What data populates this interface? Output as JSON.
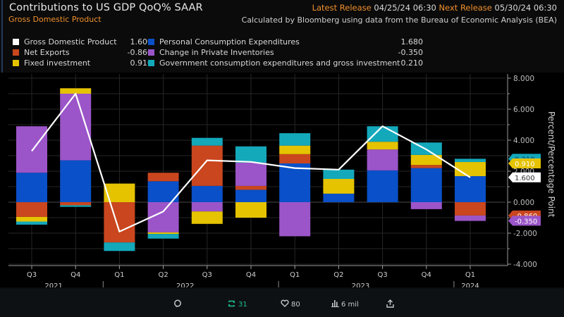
{
  "header": {
    "title": "Contributions to US GDP QoQ% SAAR",
    "subtitle": "Gross Domestic Product",
    "latest_release_label": "Latest Release",
    "latest_release_value": "04/25/24 06:30",
    "next_release_label": "Next Release",
    "next_release_value": "05/30/24 06:30",
    "source": "Calculated by Bloomberg using data from the Bureau of Economic Analysis (BEA)"
  },
  "legend": [
    {
      "name": "Gross Domestic Product",
      "value": "1.600",
      "color": "#ffffff"
    },
    {
      "name": "Net Exports",
      "value": "-0.860",
      "color": "#c9461e"
    },
    {
      "name": "Fixed investment",
      "value": "0.910",
      "color": "#e5c300"
    },
    {
      "name": "Personal Consumption Expenditures",
      "value": "1.680",
      "color": "#0a50c8"
    },
    {
      "name": "Change in Private Inventories",
      "value": "-0.350",
      "color": "#9b55c8"
    },
    {
      "name": "Government consumption expenditures and gross investment",
      "value": "0.210",
      "color": "#14a8bb"
    }
  ],
  "social": {
    "reply_icon": "reply-icon",
    "retweet_icon": "retweet-icon",
    "retweet_count": "31",
    "like_icon": "heart-icon",
    "like_count": "80",
    "views_icon": "views-icon",
    "views_count": "6 mil",
    "share_icon": "share-icon"
  },
  "chart_data": {
    "type": "bar",
    "stacked": true,
    "title": "Contributions to US GDP QoQ% SAAR",
    "xlabel": "",
    "ylabel": "Percent/Percentage Point",
    "ylim": [
      -4,
      8
    ],
    "yticks": [
      "8.000",
      "6.000",
      "4.000",
      "2.000",
      "0.000",
      "-2.000",
      "-4.000"
    ],
    "ytick_values": [
      8,
      6,
      4,
      2,
      0,
      -2,
      -4
    ],
    "grid": true,
    "legend_position": "top",
    "categories": [
      "Q3",
      "Q4",
      "Q1",
      "Q2",
      "Q3",
      "Q4",
      "Q1",
      "Q2",
      "Q3",
      "Q4",
      "Q1"
    ],
    "years": [
      {
        "label": "2021",
        "start": 0,
        "end": 1
      },
      {
        "label": "2022",
        "start": 2,
        "end": 5
      },
      {
        "label": "2023",
        "start": 6,
        "end": 9
      },
      {
        "label": "2024",
        "start": 10,
        "end": 10
      }
    ],
    "series": [
      {
        "name": "Personal Consumption Expenditures",
        "color": "#0a50c8",
        "values": [
          1.9,
          2.7,
          0.0,
          1.35,
          1.05,
          0.8,
          2.5,
          0.55,
          2.05,
          2.2,
          1.68
        ]
      },
      {
        "name": "Net Exports",
        "color": "#c9461e",
        "values": [
          -0.95,
          -0.2,
          -2.6,
          0.55,
          2.6,
          0.25,
          0.6,
          0.0,
          0.0,
          0.2,
          -0.86
        ]
      },
      {
        "name": "Change in Private Inventories",
        "color": "#9b55c8",
        "values": [
          3.0,
          4.3,
          0.0,
          -1.95,
          -0.6,
          1.5,
          -2.2,
          0.0,
          1.35,
          -0.45,
          -0.35
        ]
      },
      {
        "name": "Fixed investment",
        "color": "#e5c300",
        "values": [
          -0.3,
          0.35,
          1.2,
          -0.1,
          -0.8,
          -1.0,
          0.55,
          0.95,
          0.5,
          0.65,
          0.91
        ]
      },
      {
        "name": "Government consumption expenditures and gross investment",
        "color": "#14a8bb",
        "values": [
          -0.2,
          -0.1,
          -0.55,
          -0.3,
          0.5,
          1.05,
          0.8,
          0.6,
          1.0,
          0.8,
          0.21
        ]
      }
    ],
    "line": {
      "name": "Gross Domestic Product",
      "color": "#ffffff",
      "values": [
        3.3,
        7.0,
        -1.9,
        -0.6,
        2.7,
        2.6,
        2.2,
        2.1,
        4.9,
        3.4,
        1.6
      ]
    },
    "last_value_labels": [
      {
        "series": "Government consumption expenditures and gross investment",
        "text": "0.210",
        "color": "#14a8bb",
        "y": 2.8
      },
      {
        "series": "Fixed investment",
        "text": "0.910",
        "color": "#e5c300",
        "y": 2.5
      },
      {
        "series": "Gross Domestic Product",
        "text": "1.600",
        "color": "#ffffff",
        "y": 1.6
      },
      {
        "series": "Net Exports",
        "text": "-0.860",
        "color": "#c9461e",
        "y": -0.86
      },
      {
        "series": "Change in Private Inventories",
        "text": "-0.350",
        "color": "#9b55c8",
        "y": -1.2
      }
    ]
  }
}
